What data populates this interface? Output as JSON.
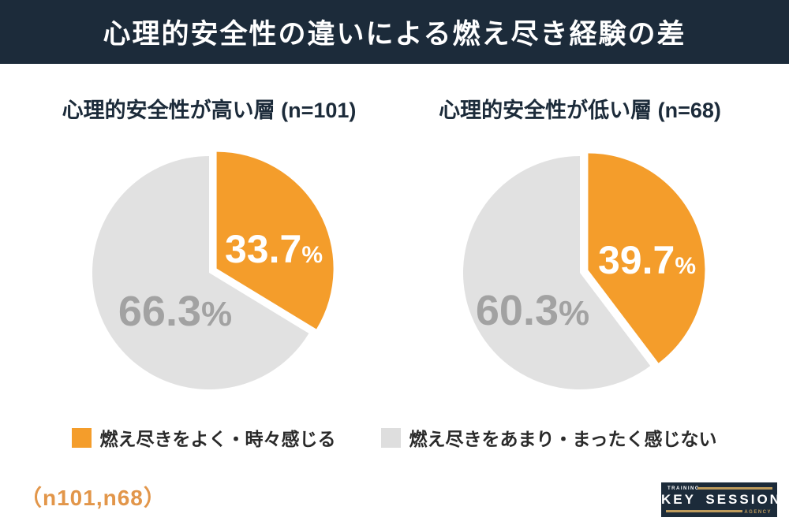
{
  "header": {
    "title": "心理的安全性の違いによる燃え尽き経験の差"
  },
  "colors": {
    "navy": "#1C2B3A",
    "orange": "#F49D2B",
    "pie_gray": "#E1E1E1",
    "gray_label_text": "#A2A2A2",
    "legend_gray": "#DEDEDE",
    "footer_orange": "#E2964A",
    "logo_gold": "#BE9B5C",
    "white": "#FFFFFF"
  },
  "chart_data": [
    {
      "type": "pie",
      "title": "心理的安全性が高い層 (n=101)",
      "sample_size": 101,
      "categories": [
        "燃え尽きをよく・時々感じる",
        "燃え尽きをあまり・まったく感じない"
      ],
      "values": [
        33.7,
        66.3
      ],
      "start_angle_deg": 0,
      "direction": "clockwise",
      "slices": [
        {
          "label": "燃え尽きをよく・時々感じる",
          "value": 33.7,
          "display": "33.7",
          "unit": "%",
          "color": "#F49D2B",
          "text_color": "#FFFFFF",
          "exploded": true
        },
        {
          "label": "燃え尽きをあまり・まったく感じない",
          "value": 66.3,
          "display": "66.3",
          "unit": "%",
          "color": "#E1E1E1",
          "text_color": "#A2A2A2",
          "exploded": false
        }
      ]
    },
    {
      "type": "pie",
      "title": "心理的安全性が低い層 (n=68)",
      "sample_size": 68,
      "categories": [
        "燃え尽きをよく・時々感じる",
        "燃え尽きをあまり・まったく感じない"
      ],
      "values": [
        39.7,
        60.3
      ],
      "start_angle_deg": 0,
      "direction": "clockwise",
      "slices": [
        {
          "label": "燃え尽きをよく・時々感じる",
          "value": 39.7,
          "display": "39.7",
          "unit": "%",
          "color": "#F49D2B",
          "text_color": "#FFFFFF",
          "exploded": true
        },
        {
          "label": "燃え尽きをあまり・まったく感じない",
          "value": 60.3,
          "display": "60.3",
          "unit": "%",
          "color": "#E1E1E1",
          "text_color": "#A2A2A2",
          "exploded": false
        }
      ]
    }
  ],
  "legend": {
    "items": [
      {
        "label": "燃え尽きをよく・時々感じる",
        "color": "#F49D2B"
      },
      {
        "label": "燃え尽きをあまり・まったく感じない",
        "color": "#DEDEDE"
      }
    ]
  },
  "footer": {
    "note": "（n101,n68）"
  },
  "logo": {
    "top_label": "TRAINING",
    "name": "KEY SESSION",
    "bottom_label": "AGENCY"
  }
}
